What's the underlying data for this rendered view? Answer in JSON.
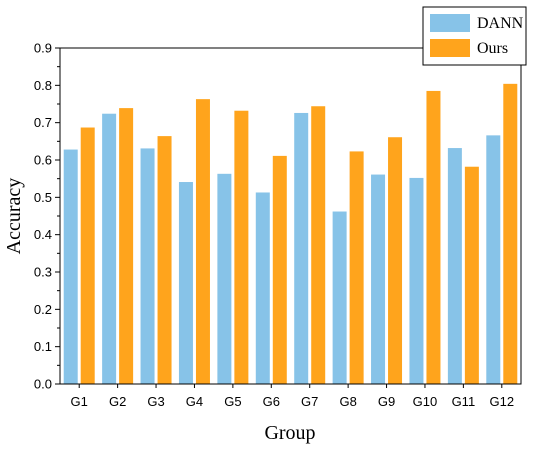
{
  "chart_data": {
    "type": "bar",
    "title": "",
    "xlabel": "Group",
    "ylabel": "Accuracy",
    "ylim": [
      0.0,
      0.9
    ],
    "yticks": [
      "0.0",
      "0.1",
      "0.2",
      "0.3",
      "0.4",
      "0.5",
      "0.6",
      "0.7",
      "0.8",
      "0.9"
    ],
    "categories": [
      "G1",
      "G2",
      "G3",
      "G4",
      "G5",
      "G6",
      "G7",
      "G8",
      "G9",
      "G10",
      "G11",
      "G12"
    ],
    "series": [
      {
        "name": "DANN",
        "color": "#87c3e8",
        "values": [
          0.628,
          0.724,
          0.631,
          0.541,
          0.563,
          0.513,
          0.726,
          0.462,
          0.561,
          0.552,
          0.632,
          0.666
        ]
      },
      {
        "name": "Ours",
        "color": "#ffa41c",
        "values": [
          0.687,
          0.739,
          0.664,
          0.763,
          0.732,
          0.611,
          0.744,
          0.623,
          0.661,
          0.785,
          0.582,
          0.804
        ]
      }
    ],
    "grid": false,
    "legend_position": "top-right"
  }
}
